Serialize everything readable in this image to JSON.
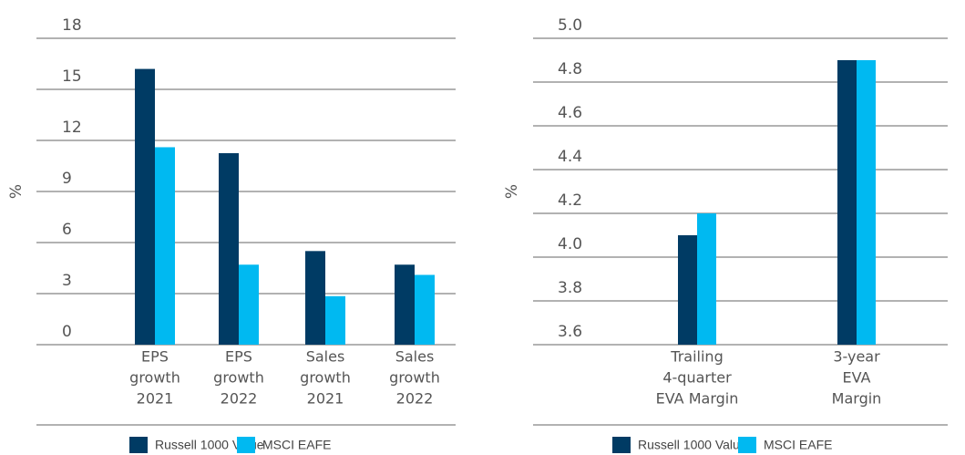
{
  "chart_data": [
    {
      "type": "bar",
      "y_label": "%",
      "categories": [
        [
          "EPS",
          "growth",
          "2021"
        ],
        [
          "EPS",
          "growth",
          "2022"
        ],
        [
          "Sales",
          "growth",
          "2021"
        ],
        [
          "Sales",
          "growth",
          "2022"
        ]
      ],
      "series": [
        {
          "name": "Russell 1000 Value",
          "color": "#003b64",
          "values": [
            16.2,
            11.25,
            5.5,
            4.7
          ]
        },
        {
          "name": "MSCI EAFE",
          "color": "#00b9f1",
          "values": [
            11.6,
            4.7,
            2.85,
            4.1
          ]
        }
      ],
      "ylim": [
        0,
        18
      ],
      "yticks": [
        0,
        3,
        6,
        9,
        12,
        15,
        18
      ],
      "grid": true
    },
    {
      "type": "bar",
      "y_label": "%",
      "categories": [
        [
          "Trailing",
          "4-quarter",
          "EVA Margin"
        ],
        [
          "3-year",
          "EVA",
          "Margin"
        ]
      ],
      "series": [
        {
          "name": "Russell 1000 Value",
          "color": "#003b64",
          "values": [
            4.1,
            4.9
          ]
        },
        {
          "name": "MSCI EAFE",
          "color": "#00b9f1",
          "values": [
            4.2,
            4.9
          ]
        }
      ],
      "ylim": [
        3.6,
        5.0
      ],
      "yticks": [
        3.6,
        3.8,
        {
          "value": 4.0,
          "label": "4.0"
        },
        4.2,
        4.4,
        4.6,
        4.8,
        {
          "value": 5.0,
          "label": "5.0"
        }
      ],
      "grid": true
    }
  ]
}
